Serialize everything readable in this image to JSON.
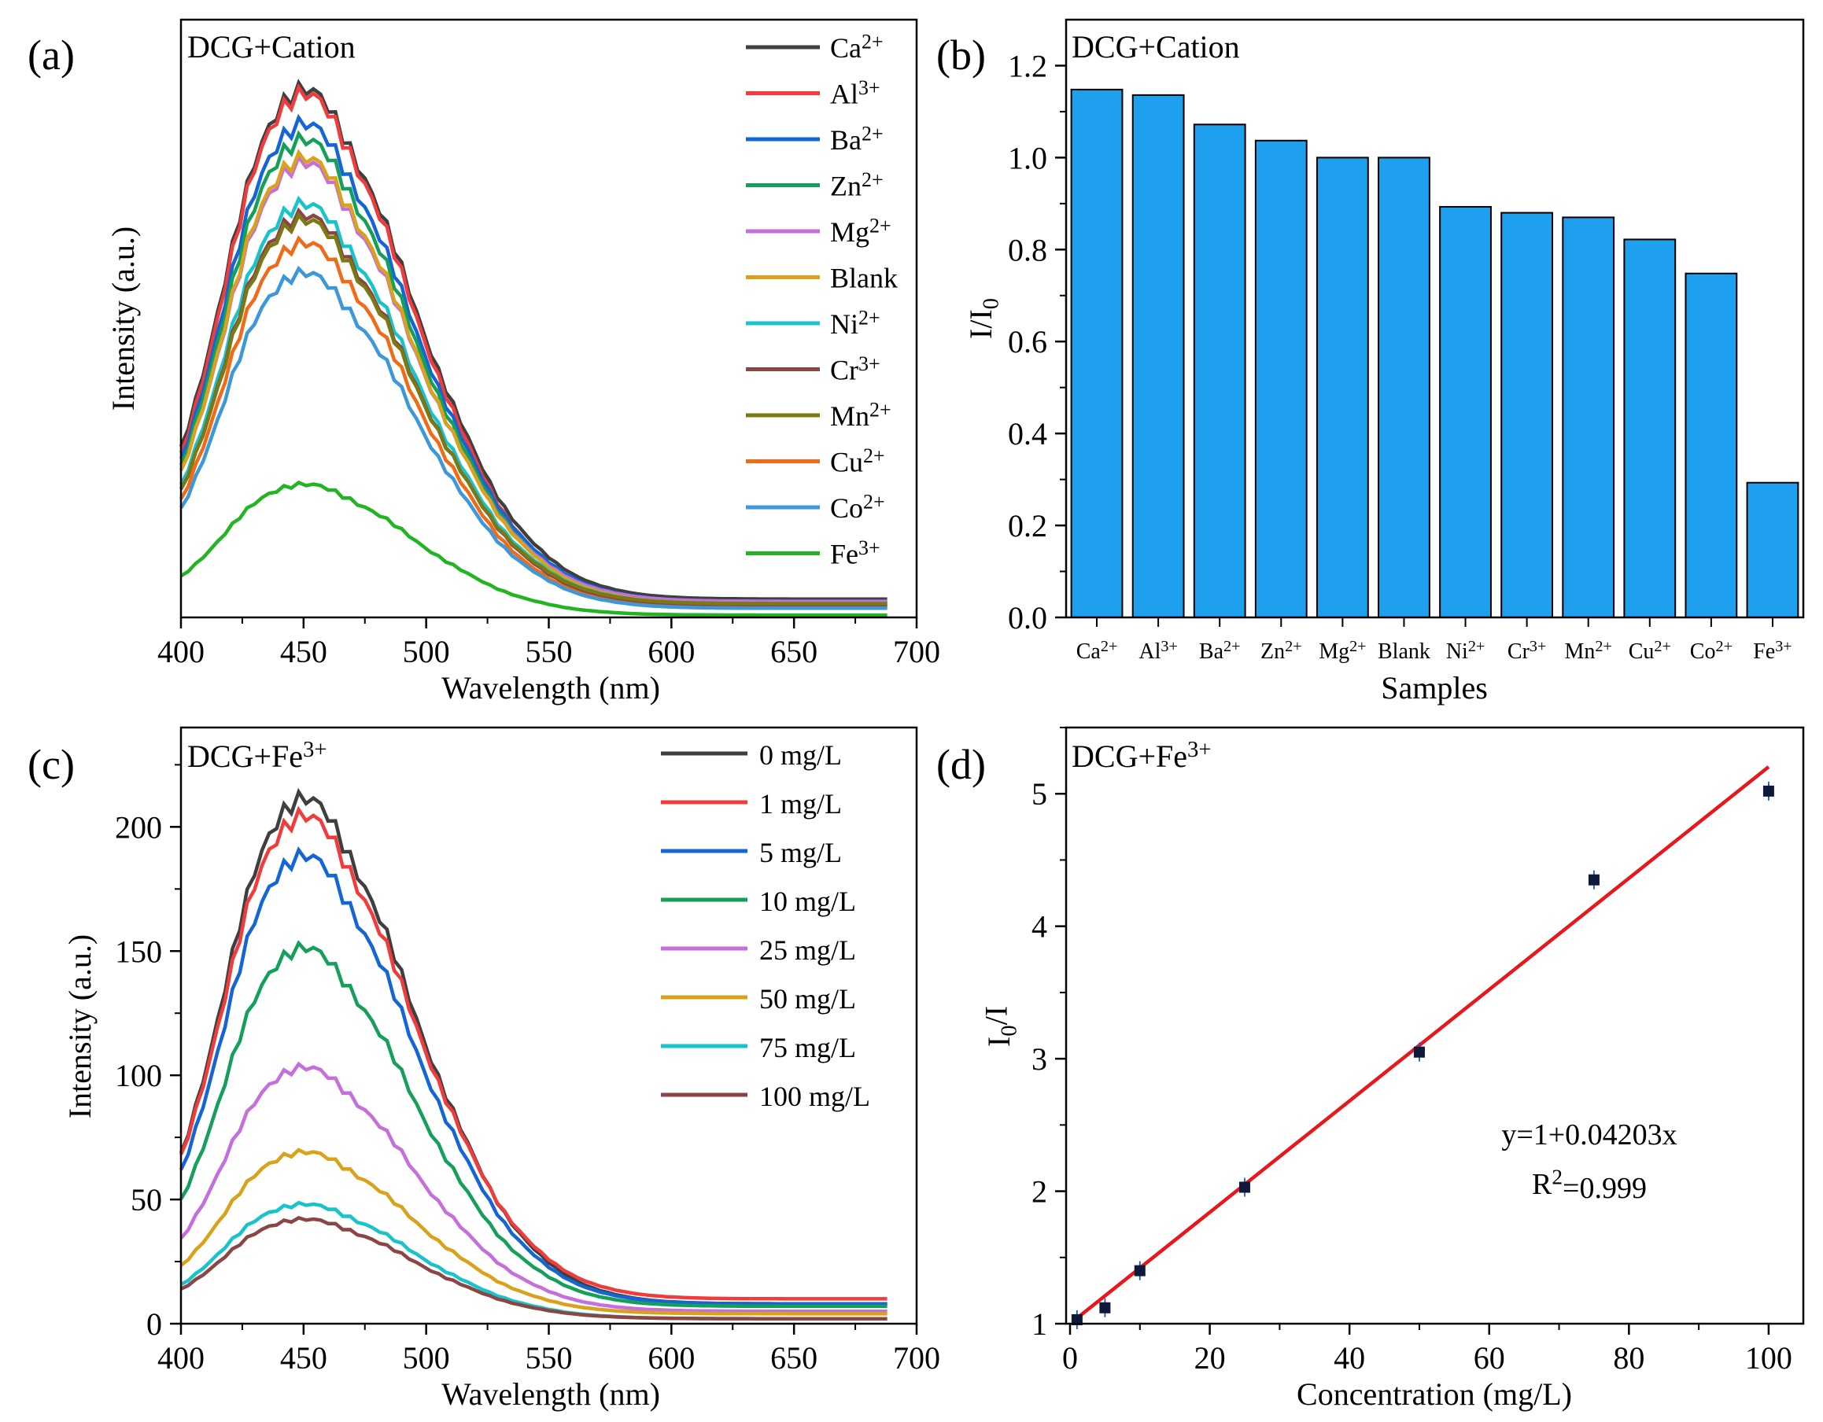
{
  "chart_data": [
    {
      "panel": "(a)",
      "type": "line",
      "title": "DCG+Cation",
      "xlabel": "Wavelength (nm)",
      "ylabel": "Intensity (a.u.)",
      "xlim": [
        400,
        700
      ],
      "ylim": [
        0,
        230
      ],
      "xticks": [
        "400",
        "450",
        "500",
        "550",
        "600",
        "650",
        "700"
      ],
      "x": [
        400,
        410,
        420,
        430,
        440,
        445,
        450,
        455,
        460,
        470,
        480,
        490,
        500,
        510,
        520,
        530,
        540,
        550,
        560,
        570,
        580,
        590,
        600,
        620,
        640,
        660,
        690
      ],
      "series": [
        {
          "name": "Ca",
          "sup": "2+",
          "color": "#3f3f3f",
          "peak": 230,
          "floor": 8
        },
        {
          "name": "Al",
          "sup": "3+",
          "color": "#f03c3c",
          "peak": 228,
          "floor": 5
        },
        {
          "name": "Ba",
          "sup": "2+",
          "color": "#1565d6",
          "peak": 215,
          "floor": 7
        },
        {
          "name": "Zn",
          "sup": "2+",
          "color": "#14a05a",
          "peak": 208,
          "floor": 6
        },
        {
          "name": "Mg",
          "sup": "2+",
          "color": "#c46fdc",
          "peak": 198,
          "floor": 7
        },
        {
          "name": "Blank",
          "sup": "",
          "color": "#d8a21a",
          "peak": 200,
          "floor": 6
        },
        {
          "name": "Ni",
          "sup": "2+",
          "color": "#18c4c9",
          "peak": 180,
          "floor": 6
        },
        {
          "name": "Cr",
          "sup": "3+",
          "color": "#8b4545",
          "peak": 175,
          "floor": 5
        },
        {
          "name": "Mn",
          "sup": "2+",
          "color": "#7a7a12",
          "peak": 173,
          "floor": 6
        },
        {
          "name": "Cu",
          "sup": "2+",
          "color": "#f06a18",
          "peak": 163,
          "floor": 4
        },
        {
          "name": "Co",
          "sup": "2+",
          "color": "#3c98d8",
          "peak": 150,
          "floor": 4
        },
        {
          "name": "Fe",
          "sup": "3+",
          "color": "#22b522",
          "peak": 58,
          "floor": 1
        }
      ]
    },
    {
      "panel": "(b)",
      "type": "bar",
      "title": "DCG+Cation",
      "xlabel": "Samples",
      "ylabel": "I/I",
      "ylabel_sub": "0",
      "ylim": [
        0,
        1.3
      ],
      "yticks": [
        "0.0",
        "0.2",
        "0.4",
        "0.6",
        "0.8",
        "1.0",
        "1.2"
      ],
      "bar_color": "#1ea0ee",
      "categories": [
        {
          "name": "Ca",
          "sup": "2+"
        },
        {
          "name": "Al",
          "sup": "3+"
        },
        {
          "name": "Ba",
          "sup": "2+"
        },
        {
          "name": "Zn",
          "sup": "2+"
        },
        {
          "name": "Mg",
          "sup": "2+"
        },
        {
          "name": "Blank",
          "sup": ""
        },
        {
          "name": "Ni",
          "sup": "2+"
        },
        {
          "name": "Cr",
          "sup": "3+"
        },
        {
          "name": "Mn",
          "sup": "2+"
        },
        {
          "name": "Cu",
          "sup": "2+"
        },
        {
          "name": "Co",
          "sup": "2+"
        },
        {
          "name": "Fe",
          "sup": "3+"
        }
      ],
      "values": [
        1.148,
        1.136,
        1.072,
        1.037,
        1.0,
        1.0,
        0.893,
        0.88,
        0.87,
        0.822,
        0.748,
        0.293
      ]
    },
    {
      "panel": "(c)",
      "type": "line",
      "title": "DCG+Fe",
      "title_sup": "3+",
      "xlabel": "Wavelength (nm)",
      "ylabel": "Intensity (a.u.)",
      "xlim": [
        400,
        700
      ],
      "ylim": [
        0,
        240
      ],
      "xticks": [
        "400",
        "450",
        "500",
        "550",
        "600",
        "650",
        "700"
      ],
      "yticks": [
        "0",
        "50",
        "100",
        "150",
        "200"
      ],
      "x": [
        400,
        410,
        420,
        430,
        440,
        445,
        450,
        455,
        460,
        470,
        480,
        490,
        500,
        510,
        520,
        530,
        540,
        550,
        560,
        570,
        580,
        590,
        600,
        620,
        640,
        660,
        690
      ],
      "series": [
        {
          "name": "0 mg/L",
          "color": "#3f3f3f",
          "peak": 211,
          "floor": 8
        },
        {
          "name": "1 mg/L",
          "color": "#f03c3c",
          "peak": 204,
          "floor": 10
        },
        {
          "name": "5 mg/L",
          "color": "#1565d6",
          "peak": 188,
          "floor": 8
        },
        {
          "name": "10 mg/L",
          "color": "#14a05a",
          "peak": 151,
          "floor": 7
        },
        {
          "name": "25 mg/L",
          "color": "#c46fdc",
          "peak": 103,
          "floor": 5
        },
        {
          "name": "50 mg/L",
          "color": "#d8a21a",
          "peak": 69,
          "floor": 4
        },
        {
          "name": "75 mg/L",
          "color": "#18c4c9",
          "peak": 48,
          "floor": 2
        },
        {
          "name": "100 mg/L",
          "color": "#8b4545",
          "peak": 42,
          "floor": 2
        }
      ]
    },
    {
      "panel": "(d)",
      "type": "scatter",
      "title": "DCG+Fe",
      "title_sup": "3+",
      "xlabel": "Concentration (mg/L)",
      "ylabel_main": "I",
      "ylabel_sub": "0",
      "ylabel_tail": "/I",
      "xlim": [
        0,
        105
      ],
      "ylim": [
        1,
        5.5
      ],
      "xticks": [
        "0",
        "20",
        "40",
        "60",
        "80",
        "100"
      ],
      "yticks": [
        "1",
        "2",
        "3",
        "4",
        "5"
      ],
      "points": [
        {
          "x": 1,
          "y": 1.03
        },
        {
          "x": 5,
          "y": 1.12
        },
        {
          "x": 10,
          "y": 1.4
        },
        {
          "x": 25,
          "y": 2.03
        },
        {
          "x": 50,
          "y": 3.05
        },
        {
          "x": 75,
          "y": 4.35
        },
        {
          "x": 100,
          "y": 5.02
        }
      ],
      "fit": {
        "intercept": 1,
        "slope": 0.04203,
        "color": "#e8171c"
      },
      "equation": "y=1+0.04203x",
      "r2_label": "R",
      "r2_sup": "2",
      "r2_value": "=0.999"
    }
  ]
}
